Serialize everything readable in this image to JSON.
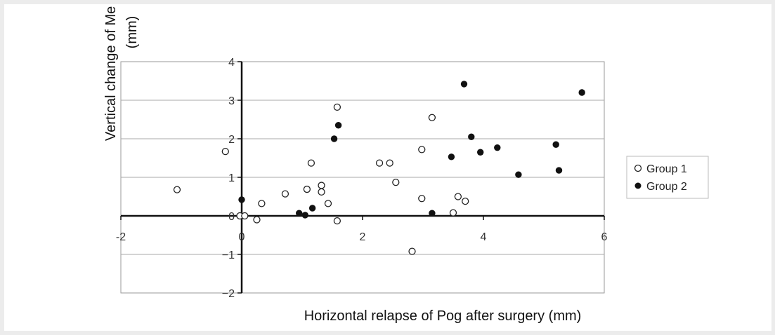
{
  "chart_data": {
    "type": "scatter",
    "title": "",
    "xlabel": "Horizontal relapse of Pog after surgery (mm)",
    "ylabel": "Vertical change of Me after surgery (mm)",
    "xlim": [
      -2,
      6
    ],
    "ylim": [
      -2,
      4
    ],
    "xticks": [
      -2,
      0,
      2,
      4,
      6
    ],
    "yticks": [
      -2,
      -1,
      0,
      1,
      2,
      3,
      4
    ],
    "x_tick_labels": [
      "-2",
      "0",
      "2",
      "4",
      "6"
    ],
    "y_tick_labels": [
      "−2",
      "−1",
      "0",
      "1",
      "2",
      "3",
      "4"
    ],
    "grid": "horizontal",
    "legend_position": "right",
    "series": [
      {
        "name": "Group 1",
        "marker": "open-circle",
        "color": "#222222",
        "points": [
          [
            -1.07,
            0.68
          ],
          [
            -0.27,
            1.67
          ],
          [
            -0.03,
            0.0
          ],
          [
            0.33,
            0.32
          ],
          [
            0.05,
            0.0
          ],
          [
            0.25,
            -0.1
          ],
          [
            0.72,
            0.57
          ],
          [
            1.08,
            0.69
          ],
          [
            1.15,
            1.37
          ],
          [
            1.32,
            0.79
          ],
          [
            1.32,
            0.62
          ],
          [
            1.43,
            0.32
          ],
          [
            1.58,
            2.82
          ],
          [
            1.58,
            -0.13
          ],
          [
            2.28,
            1.37
          ],
          [
            2.45,
            1.37
          ],
          [
            2.55,
            0.87
          ],
          [
            2.82,
            -0.92
          ],
          [
            2.98,
            1.72
          ],
          [
            2.98,
            0.45
          ],
          [
            3.15,
            2.55
          ],
          [
            3.5,
            0.08
          ],
          [
            3.58,
            0.5
          ],
          [
            3.7,
            0.38
          ]
        ]
      },
      {
        "name": "Group 2",
        "marker": "filled-circle",
        "color": "#111111",
        "points": [
          [
            0.0,
            0.42
          ],
          [
            0.95,
            0.07
          ],
          [
            1.05,
            0.02
          ],
          [
            1.17,
            0.2
          ],
          [
            1.53,
            2.0
          ],
          [
            1.6,
            2.35
          ],
          [
            3.15,
            0.07
          ],
          [
            3.47,
            1.53
          ],
          [
            3.68,
            3.42
          ],
          [
            3.8,
            2.05
          ],
          [
            3.95,
            1.65
          ],
          [
            4.23,
            1.77
          ],
          [
            4.58,
            1.07
          ],
          [
            5.2,
            1.85
          ],
          [
            5.25,
            1.18
          ],
          [
            5.63,
            3.2
          ]
        ]
      }
    ]
  }
}
